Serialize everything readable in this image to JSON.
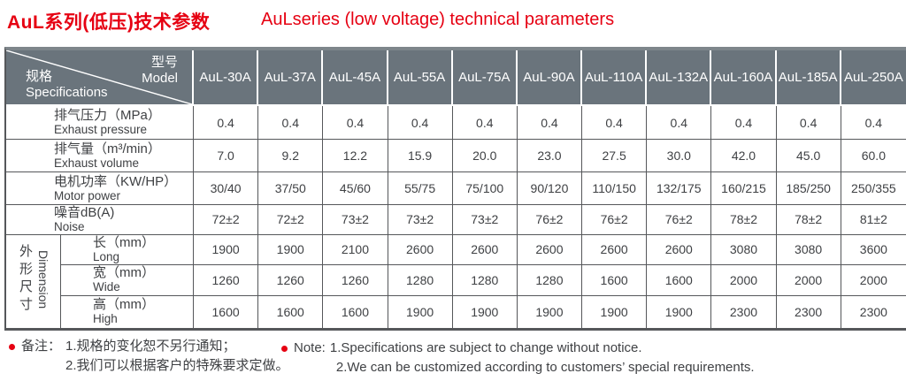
{
  "page": {
    "title_cn": "AuL系列(低压)技术参数",
    "title_en": "AuLseries (low voltage) technical parameters"
  },
  "colors": {
    "accent_red": "#e60012",
    "header_bg": "#6a747c",
    "header_text": "#ffffff",
    "body_text": "#3f4144",
    "grid_line": "#55575a",
    "frame_top": "#7e868b"
  },
  "table": {
    "corner": {
      "model_cn": "型号",
      "model_en": "Model",
      "spec_cn": "规格",
      "spec_en": "Specifications"
    },
    "models": [
      "AuL-30A",
      "AuL-37A",
      "AuL-45A",
      "AuL-55A",
      "AuL-75A",
      "AuL-90A",
      "AuL-110A",
      "AuL-132A",
      "AuL-160A",
      "AuL-185A",
      "AuL-250A"
    ],
    "rows": [
      {
        "label_cn": "排气压力（MPa）",
        "label_en": "Exhaust pressure",
        "values": [
          "0.4",
          "0.4",
          "0.4",
          "0.4",
          "0.4",
          "0.4",
          "0.4",
          "0.4",
          "0.4",
          "0.4",
          "0.4"
        ]
      },
      {
        "label_cn": "排气量（m³/min）",
        "label_en": "Exhaust volume",
        "values": [
          "7.0",
          "9.2",
          "12.2",
          "15.9",
          "20.0",
          "23.0",
          "27.5",
          "30.0",
          "42.0",
          "45.0",
          "60.0"
        ]
      },
      {
        "label_cn": "电机功率（KW/HP）",
        "label_en": "Motor power",
        "values": [
          "30/40",
          "37/50",
          "45/60",
          "55/75",
          "75/100",
          "90/120",
          "110/150",
          "132/175",
          "160/215",
          "185/250",
          "250/355"
        ]
      },
      {
        "label_cn": "噪音dB(A)",
        "label_en": "Noise",
        "values": [
          "72±2",
          "72±2",
          "73±2",
          "73±2",
          "73±2",
          "76±2",
          "76±2",
          "76±2",
          "78±2",
          "78±2",
          "81±2"
        ]
      }
    ],
    "dimension_group": {
      "label_cn": "外形尺寸",
      "label_en": "Dimension",
      "rows": [
        {
          "label_cn": "长（mm）",
          "label_en": "Long",
          "values": [
            "1900",
            "1900",
            "2100",
            "2600",
            "2600",
            "2600",
            "2600",
            "2600",
            "3080",
            "3080",
            "3600"
          ]
        },
        {
          "label_cn": "宽（mm）",
          "label_en": "Wide",
          "values": [
            "1260",
            "1260",
            "1260",
            "1280",
            "1280",
            "1280",
            "1600",
            "1600",
            "2000",
            "2000",
            "2000"
          ]
        },
        {
          "label_cn": "高（mm）",
          "label_en": "High",
          "values": [
            "1600",
            "1600",
            "1600",
            "1900",
            "1900",
            "1900",
            "1900",
            "1900",
            "2300",
            "2300",
            "2300"
          ]
        }
      ]
    }
  },
  "notes": {
    "cn": {
      "label": "备注：",
      "line1": "1.规格的变化恕不另行通知；",
      "line2": "2.我们可以根据客户的特殊要求定做。"
    },
    "en": {
      "label": "Note:",
      "line1": "1.Specifications are subject to change without notice.",
      "line2": "2.We can be customized according to customers’ special requirements."
    }
  }
}
